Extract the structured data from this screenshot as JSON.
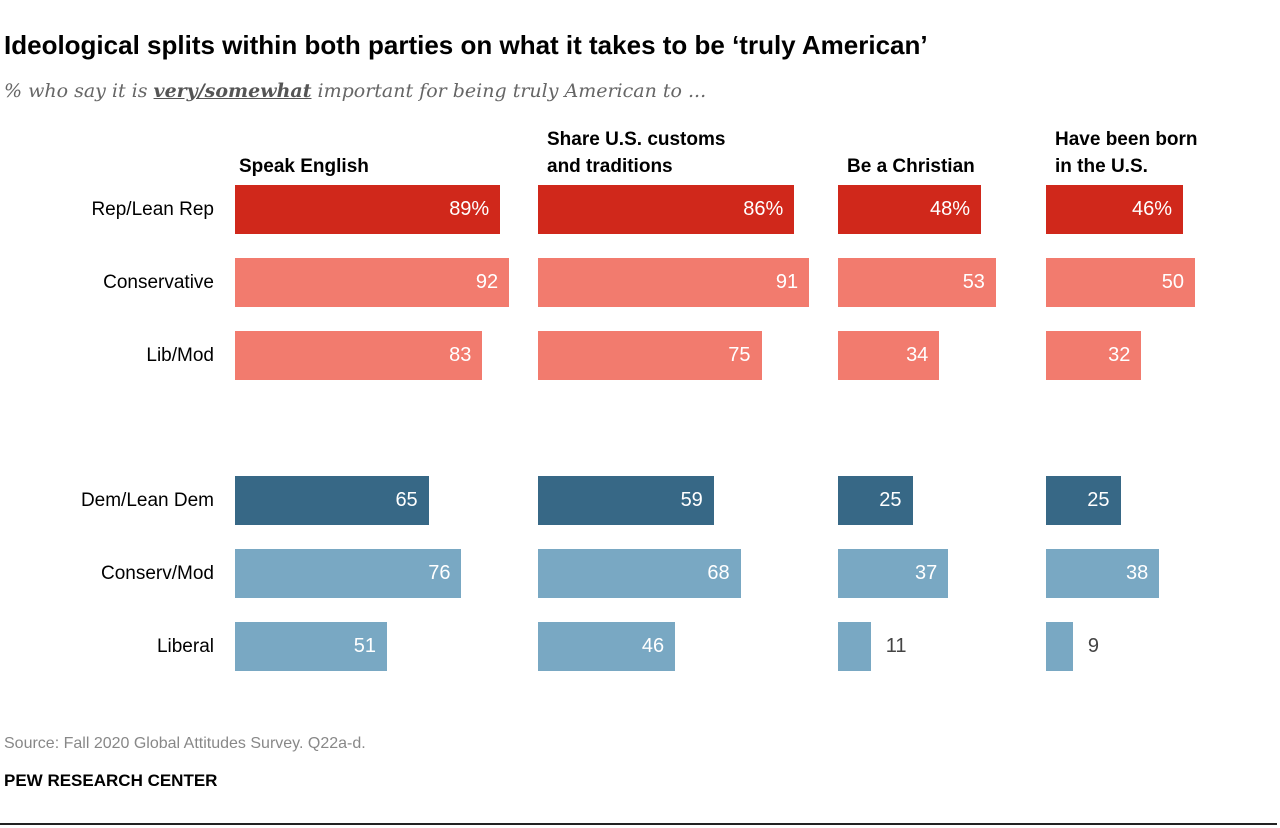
{
  "title": "Ideological splits within both parties on what it takes to be ‘truly American’",
  "subtitle": {
    "before": "% who say it is ",
    "emphasis": "very/somewhat",
    "after": " important for being truly American to ..."
  },
  "source": "Source: Fall 2020 Global Attitudes Survey. Q22a-d.",
  "brand": "PEW RESEARCH CENTER",
  "colors": {
    "rep": "#d0281b",
    "rep_sub": "#f27b6e",
    "dem": "#376886",
    "dem_sub": "#79a8c3"
  },
  "chart_data": {
    "type": "bar",
    "orientation": "horizontal",
    "title": "Ideological splits within both parties on what it takes to be ‘truly American’",
    "categories": [
      "Rep/Lean Rep",
      "Conservative",
      "Lib/Mod",
      "Dem/Lean Dem",
      "Conserv/Mod",
      "Liberal"
    ],
    "category_colors": [
      "rep",
      "rep_sub",
      "rep_sub",
      "dem",
      "dem_sub",
      "dem_sub"
    ],
    "xlim": [
      0,
      100
    ],
    "grid": false,
    "first_label_suffix": "%",
    "panels": [
      {
        "name": "Speak English",
        "values": [
          89,
          92,
          83,
          65,
          76,
          51
        ]
      },
      {
        "name": "Share U.S. customs\nand traditions",
        "values": [
          86,
          91,
          75,
          59,
          68,
          46
        ]
      },
      {
        "name": "Be a Christian",
        "values": [
          48,
          53,
          34,
          25,
          37,
          11
        ]
      },
      {
        "name": "Have been born\nin the U.S.",
        "values": [
          46,
          50,
          32,
          25,
          38,
          9
        ]
      }
    ]
  }
}
